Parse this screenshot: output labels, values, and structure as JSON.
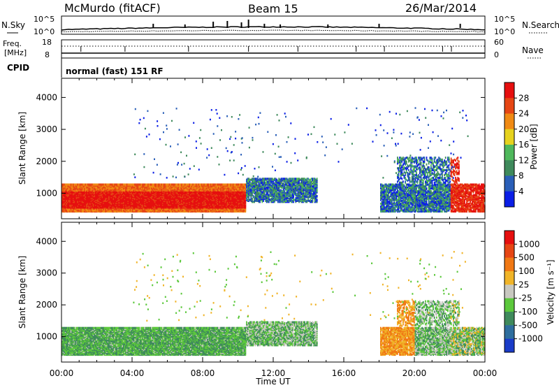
{
  "header": {
    "station": "McMurdo (fitACF)",
    "beam": "Beam 15",
    "date": "26/Mar/2014"
  },
  "noise_panel": {
    "left_label": "N.Sky",
    "right_label": "N.Search",
    "left_ticks": [
      "10^5",
      "10^0"
    ],
    "right_ticks": [
      "10^5",
      "10^0"
    ]
  },
  "freq_panel": {
    "left_label_1": "Freq.",
    "left_label_2": "[MHz]",
    "left_ticks": [
      "18",
      "8"
    ],
    "right_label": "Nave",
    "right_ticks": [
      "60",
      "0"
    ]
  },
  "cpid": {
    "label": "CPID",
    "value": "normal (fast) 151 RF"
  },
  "chart_data": [
    {
      "type": "heatmap",
      "title": "",
      "ylabel": "Slant Range [km]",
      "yticks": [
        "1000",
        "2000",
        "3000",
        "4000"
      ],
      "xticks": [
        "00:00",
        "04:00",
        "08:00",
        "12:00",
        "16:00",
        "20:00",
        "00:00"
      ],
      "colorbar": {
        "label": "Power [dB]",
        "ticks": [
          "4",
          "8",
          "12",
          "16",
          "20",
          "24",
          "28"
        ],
        "colors": [
          "#0a1ee6",
          "#2a5fb8",
          "#3f8a5c",
          "#4fb85c",
          "#e6d21e",
          "#f08a14",
          "#e64614",
          "#e60f0f"
        ]
      }
    },
    {
      "type": "heatmap",
      "title": "",
      "ylabel": "Slant Range [km]",
      "yticks": [
        "1000",
        "2000",
        "3000",
        "4000"
      ],
      "xticks": [
        "00:00",
        "04:00",
        "08:00",
        "12:00",
        "16:00",
        "20:00",
        "00:00"
      ],
      "colorbar": {
        "label": "Velocity [m s⁻¹]",
        "ticks": [
          "1000",
          "500",
          "100",
          "25",
          "-25",
          "-100",
          "-500",
          "-1000"
        ],
        "colors": [
          "#1a3cc8",
          "#2e6e9e",
          "#3f8a5c",
          "#5cc83c",
          "#c8c8c0",
          "#f0b428",
          "#f07814",
          "#e64614",
          "#e60f0f"
        ]
      }
    }
  ],
  "xaxis": {
    "label": "Time UT"
  }
}
